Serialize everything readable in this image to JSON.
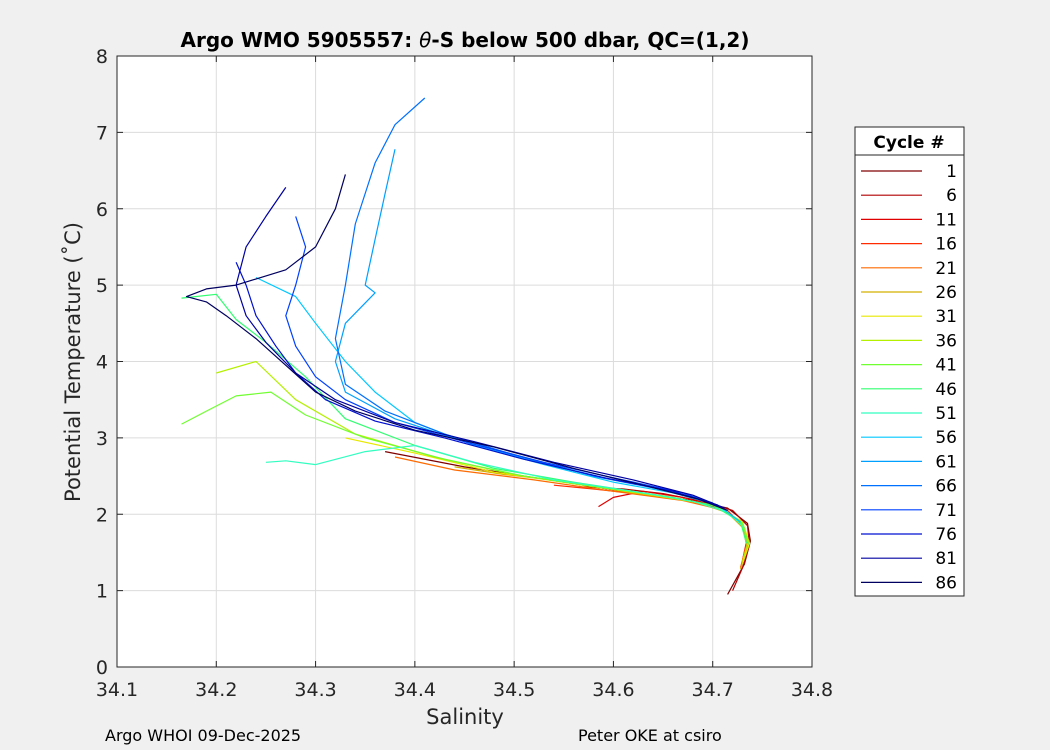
{
  "chart_data": {
    "type": "line",
    "title": "Argo WMO 5905557: θ-S below 500 dbar,  QC=(1,2)",
    "title_prefix": "Argo WMO 5905557: ",
    "title_theta": "θ",
    "title_suffix": "-S below 500 dbar,  QC=(1,2)",
    "xlabel": "Salinity",
    "ylabel": "Potential Temperature (˚C)",
    "xlim": [
      34.1,
      34.8
    ],
    "ylim": [
      0,
      8
    ],
    "xticks": [
      "34.1",
      "34.2",
      "34.3",
      "34.4",
      "34.5",
      "34.6",
      "34.7",
      "34.8"
    ],
    "yticks": [
      "0",
      "1",
      "2",
      "3",
      "4",
      "5",
      "6",
      "7",
      "8"
    ],
    "grid": true,
    "legend_title": "Cycle #",
    "legend_position": "right",
    "series": [
      {
        "name": "1",
        "color": "#800000",
        "points": [
          [
            34.37,
            2.82
          ],
          [
            34.45,
            2.62
          ],
          [
            34.55,
            2.42
          ],
          [
            34.62,
            2.28
          ],
          [
            34.68,
            2.18
          ],
          [
            34.715,
            2.08
          ],
          [
            34.735,
            1.88
          ],
          [
            34.738,
            1.65
          ],
          [
            34.732,
            1.35
          ],
          [
            34.715,
            0.95
          ]
        ]
      },
      {
        "name": "6",
        "color": "#b00000",
        "points": [
          [
            34.57,
            2.36
          ],
          [
            34.61,
            2.33
          ],
          [
            34.65,
            2.27
          ],
          [
            34.69,
            2.17
          ],
          [
            34.72,
            2.05
          ],
          [
            34.735,
            1.85
          ],
          [
            34.737,
            1.6
          ],
          [
            34.73,
            1.3
          ],
          [
            34.72,
            1.0
          ]
        ]
      },
      {
        "name": "11",
        "color": "#e00000",
        "points": [
          [
            34.585,
            2.1
          ],
          [
            34.6,
            2.22
          ],
          [
            34.63,
            2.3
          ],
          [
            34.67,
            2.22
          ],
          [
            34.705,
            2.1
          ],
          [
            34.728,
            1.9
          ],
          [
            34.735,
            1.7
          ],
          [
            34.73,
            1.4
          ]
        ]
      },
      {
        "name": "16",
        "color": "#ff2a00",
        "points": [
          [
            34.54,
            2.38
          ],
          [
            34.58,
            2.33
          ],
          [
            34.63,
            2.26
          ],
          [
            34.68,
            2.17
          ],
          [
            34.715,
            2.05
          ],
          [
            34.732,
            1.82
          ],
          [
            34.735,
            1.58
          ],
          [
            34.728,
            1.3
          ]
        ]
      },
      {
        "name": "21",
        "color": "#ff6a00",
        "points": [
          [
            34.38,
            2.75
          ],
          [
            34.44,
            2.58
          ],
          [
            34.52,
            2.45
          ],
          [
            34.6,
            2.3
          ],
          [
            34.67,
            2.18
          ],
          [
            34.712,
            2.05
          ],
          [
            34.73,
            1.85
          ],
          [
            34.734,
            1.6
          ],
          [
            34.728,
            1.3
          ]
        ]
      },
      {
        "name": "26",
        "color": "#d4b000",
        "points": [
          [
            34.44,
            2.62
          ],
          [
            34.49,
            2.52
          ],
          [
            34.55,
            2.43
          ],
          [
            34.62,
            2.28
          ],
          [
            34.68,
            2.17
          ],
          [
            34.715,
            2.02
          ],
          [
            34.732,
            1.8
          ],
          [
            34.735,
            1.55
          ],
          [
            34.728,
            1.28
          ]
        ]
      },
      {
        "name": "31",
        "color": "#e8e800",
        "points": [
          [
            34.33,
            3.0
          ],
          [
            34.4,
            2.8
          ],
          [
            34.48,
            2.55
          ],
          [
            34.56,
            2.4
          ],
          [
            34.64,
            2.25
          ],
          [
            34.7,
            2.12
          ],
          [
            34.73,
            1.9
          ],
          [
            34.737,
            1.62
          ],
          [
            34.73,
            1.35
          ]
        ]
      },
      {
        "name": "36",
        "color": "#b5f000",
        "points": [
          [
            34.2,
            3.85
          ],
          [
            34.24,
            4.0
          ],
          [
            34.28,
            3.5
          ],
          [
            34.34,
            3.05
          ],
          [
            34.42,
            2.75
          ],
          [
            34.5,
            2.52
          ],
          [
            34.58,
            2.36
          ],
          [
            34.65,
            2.24
          ],
          [
            34.7,
            2.12
          ],
          [
            34.728,
            1.92
          ],
          [
            34.736,
            1.65
          ],
          [
            34.73,
            1.38
          ]
        ]
      },
      {
        "name": "41",
        "color": "#70ff30",
        "points": [
          [
            34.165,
            3.18
          ],
          [
            34.19,
            3.35
          ],
          [
            34.22,
            3.55
          ],
          [
            34.255,
            3.6
          ],
          [
            34.29,
            3.3
          ],
          [
            34.35,
            3.0
          ],
          [
            34.43,
            2.72
          ],
          [
            34.51,
            2.5
          ],
          [
            34.6,
            2.33
          ],
          [
            34.66,
            2.22
          ],
          [
            34.705,
            2.1
          ],
          [
            34.73,
            1.88
          ],
          [
            34.736,
            1.6
          ]
        ]
      },
      {
        "name": "46",
        "color": "#30ff70",
        "points": [
          [
            34.165,
            4.83
          ],
          [
            34.2,
            4.88
          ],
          [
            34.22,
            4.55
          ],
          [
            34.25,
            4.25
          ],
          [
            34.29,
            3.8
          ],
          [
            34.33,
            3.25
          ],
          [
            34.4,
            2.9
          ],
          [
            34.48,
            2.6
          ],
          [
            34.56,
            2.42
          ],
          [
            34.64,
            2.26
          ],
          [
            34.7,
            2.12
          ],
          [
            34.728,
            1.9
          ],
          [
            34.734,
            1.62
          ]
        ]
      },
      {
        "name": "51",
        "color": "#30ffc0",
        "points": [
          [
            34.25,
            2.68
          ],
          [
            34.27,
            2.7
          ],
          [
            34.3,
            2.65
          ],
          [
            34.35,
            2.82
          ],
          [
            34.4,
            2.9
          ],
          [
            34.46,
            2.68
          ],
          [
            34.54,
            2.45
          ],
          [
            34.62,
            2.3
          ],
          [
            34.68,
            2.17
          ],
          [
            34.715,
            2.03
          ],
          [
            34.732,
            1.82
          ]
        ]
      },
      {
        "name": "56",
        "color": "#00c8ff",
        "points": [
          [
            34.24,
            5.1
          ],
          [
            34.28,
            4.85
          ],
          [
            34.3,
            4.5
          ],
          [
            34.33,
            4.0
          ],
          [
            34.36,
            3.6
          ],
          [
            34.4,
            3.2
          ],
          [
            34.46,
            2.9
          ],
          [
            34.53,
            2.65
          ],
          [
            34.6,
            2.42
          ],
          [
            34.66,
            2.28
          ],
          [
            34.705,
            2.12
          ],
          [
            34.728,
            1.9
          ]
        ]
      },
      {
        "name": "61",
        "color": "#00a0ff",
        "points": [
          [
            34.38,
            6.78
          ],
          [
            34.37,
            6.2
          ],
          [
            34.36,
            5.6
          ],
          [
            34.35,
            5.0
          ],
          [
            34.36,
            4.9
          ],
          [
            34.33,
            4.5
          ],
          [
            34.32,
            4.0
          ],
          [
            34.33,
            3.6
          ],
          [
            34.38,
            3.25
          ],
          [
            34.45,
            2.95
          ],
          [
            34.52,
            2.7
          ],
          [
            34.6,
            2.45
          ],
          [
            34.66,
            2.3
          ],
          [
            34.705,
            2.12
          ]
        ]
      },
      {
        "name": "66",
        "color": "#0070ff",
        "points": [
          [
            34.41,
            7.45
          ],
          [
            34.38,
            7.1
          ],
          [
            34.36,
            6.6
          ],
          [
            34.34,
            5.8
          ],
          [
            34.33,
            5.0
          ],
          [
            34.32,
            4.3
          ],
          [
            34.33,
            3.7
          ],
          [
            34.37,
            3.35
          ],
          [
            34.43,
            3.05
          ],
          [
            34.5,
            2.78
          ],
          [
            34.58,
            2.5
          ],
          [
            34.65,
            2.32
          ],
          [
            34.7,
            2.15
          ]
        ]
      },
      {
        "name": "71",
        "color": "#0040ff",
        "points": [
          [
            34.28,
            5.9
          ],
          [
            34.29,
            5.5
          ],
          [
            34.28,
            5.0
          ],
          [
            34.27,
            4.6
          ],
          [
            34.28,
            4.2
          ],
          [
            34.3,
            3.8
          ],
          [
            34.33,
            3.5
          ],
          [
            34.38,
            3.2
          ],
          [
            34.45,
            2.95
          ],
          [
            34.53,
            2.68
          ],
          [
            34.61,
            2.45
          ],
          [
            34.67,
            2.28
          ],
          [
            34.708,
            2.1
          ]
        ]
      },
      {
        "name": "76",
        "color": "#0010d0",
        "points": [
          [
            34.22,
            5.3
          ],
          [
            34.23,
            5.0
          ],
          [
            34.24,
            4.6
          ],
          [
            34.26,
            4.2
          ],
          [
            34.28,
            3.85
          ],
          [
            34.31,
            3.5
          ],
          [
            34.36,
            3.22
          ],
          [
            34.43,
            3.0
          ],
          [
            34.51,
            2.72
          ],
          [
            34.59,
            2.48
          ],
          [
            34.66,
            2.3
          ],
          [
            34.705,
            2.12
          ]
        ]
      },
      {
        "name": "81",
        "color": "#0000a0",
        "points": [
          [
            34.27,
            6.28
          ],
          [
            34.25,
            5.9
          ],
          [
            34.23,
            5.5
          ],
          [
            34.22,
            5.0
          ],
          [
            34.23,
            4.6
          ],
          [
            34.25,
            4.25
          ],
          [
            34.28,
            3.85
          ],
          [
            34.32,
            3.5
          ],
          [
            34.38,
            3.2
          ],
          [
            34.46,
            2.95
          ],
          [
            34.54,
            2.68
          ],
          [
            34.62,
            2.45
          ],
          [
            34.68,
            2.25
          ],
          [
            34.712,
            2.08
          ]
        ]
      },
      {
        "name": "86",
        "color": "#000060",
        "points": [
          [
            34.33,
            6.45
          ],
          [
            34.32,
            6.0
          ],
          [
            34.3,
            5.5
          ],
          [
            34.27,
            5.2
          ],
          [
            34.22,
            5.0
          ],
          [
            34.19,
            4.95
          ],
          [
            34.17,
            4.85
          ],
          [
            34.19,
            4.78
          ],
          [
            34.21,
            4.6
          ],
          [
            34.24,
            4.3
          ],
          [
            34.27,
            3.95
          ],
          [
            34.3,
            3.6
          ],
          [
            34.34,
            3.35
          ],
          [
            34.4,
            3.1
          ],
          [
            34.48,
            2.88
          ],
          [
            34.56,
            2.6
          ],
          [
            34.63,
            2.38
          ],
          [
            34.685,
            2.2
          ],
          [
            34.715,
            2.05
          ]
        ]
      }
    ]
  },
  "footer": {
    "left": "Argo WHOI 09-Dec-2025",
    "right": "Peter OKE at csiro"
  }
}
